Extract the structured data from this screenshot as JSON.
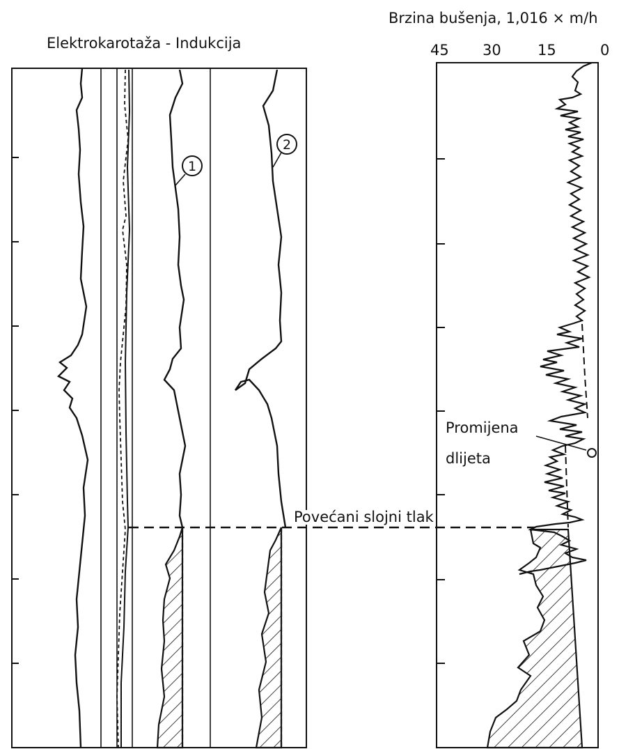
{
  "left_panel": {
    "title": "Elektrokarotaža - Indukcija",
    "curve_markers": [
      "1",
      "2"
    ]
  },
  "right_panel": {
    "title": "Brzina bušenja, 1,016 × m/h",
    "scale_labels": [
      "45",
      "30",
      "15",
      "0"
    ]
  },
  "annotations": {
    "pressure_label": "Povećani slojni tlak",
    "bit_change_line1": "Promijena",
    "bit_change_line2": "dlijeta"
  },
  "colors": {
    "ink": "#111111",
    "paper": "#ffffff"
  }
}
